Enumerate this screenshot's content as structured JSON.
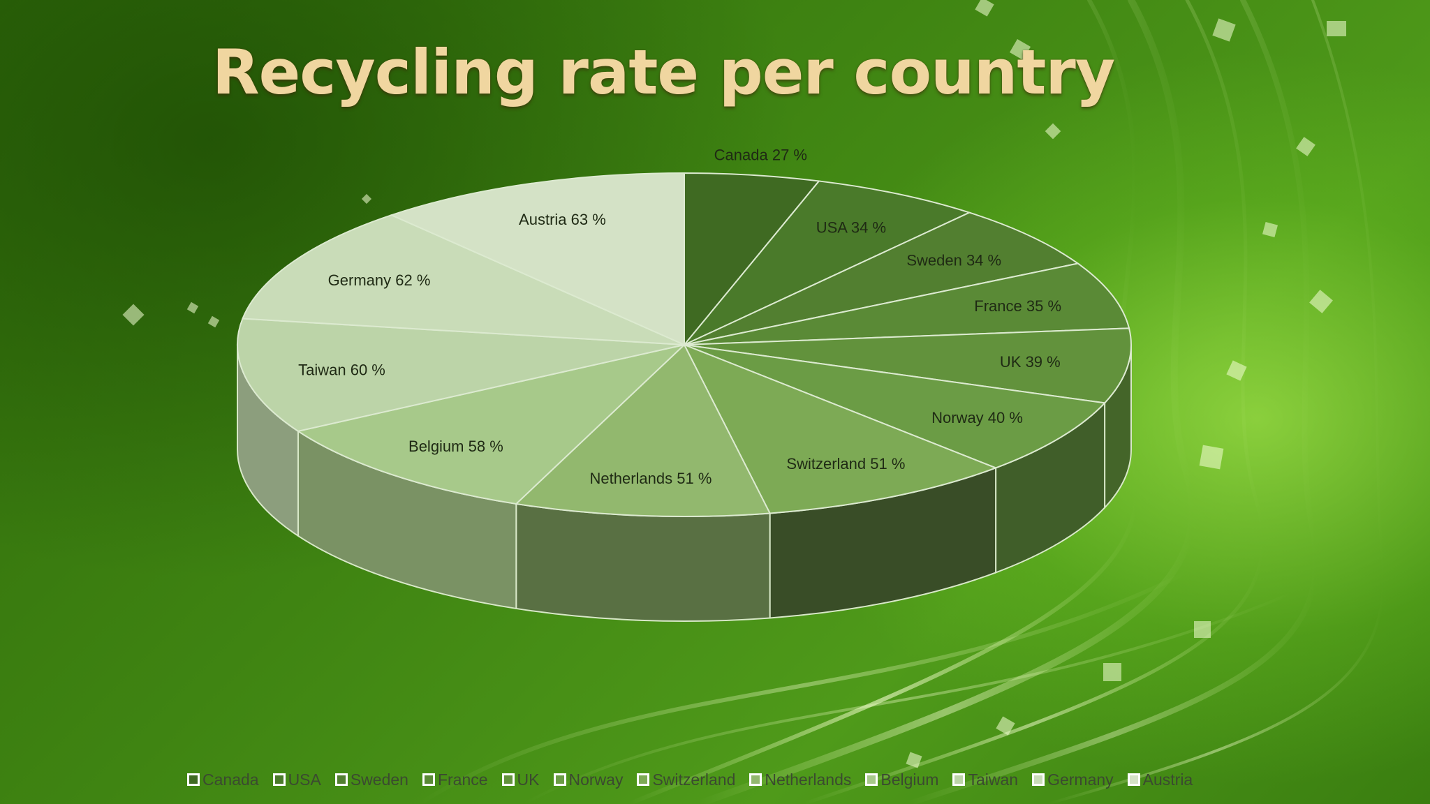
{
  "chart_data": {
    "type": "pie",
    "title": "Recycling rate per country",
    "categories": [
      "Canada",
      "USA",
      "Sweden",
      "France",
      "UK",
      "Norway",
      "Switzerland",
      "Netherlands",
      "Belgium",
      "Taiwan",
      "Germany",
      "Austria"
    ],
    "values": [
      27,
      34,
      34,
      35,
      39,
      40,
      51,
      51,
      58,
      60,
      62,
      63
    ],
    "unit": "%",
    "data_labels": [
      "Canada 27 %",
      "USA 34 %",
      "Sweden 34 %",
      "France 35 %",
      "UK 39 %",
      "Norway 40 %",
      "Switzerland 51 %",
      "Netherlands 51 %",
      "Belgium 58 %",
      "Taiwan 60 %",
      "Germany 62 %",
      "Austria 63 %"
    ],
    "colors": [
      "#3f6a22",
      "#4a7a2a",
      "#527f30",
      "#5a8a36",
      "#62923c",
      "#6b9c45",
      "#7daa55",
      "#92b86e",
      "#a7c98a",
      "#bcd4a8",
      "#c9dcb8",
      "#d4e2c6"
    ],
    "legend_position": "bottom",
    "style": "3d"
  }
}
